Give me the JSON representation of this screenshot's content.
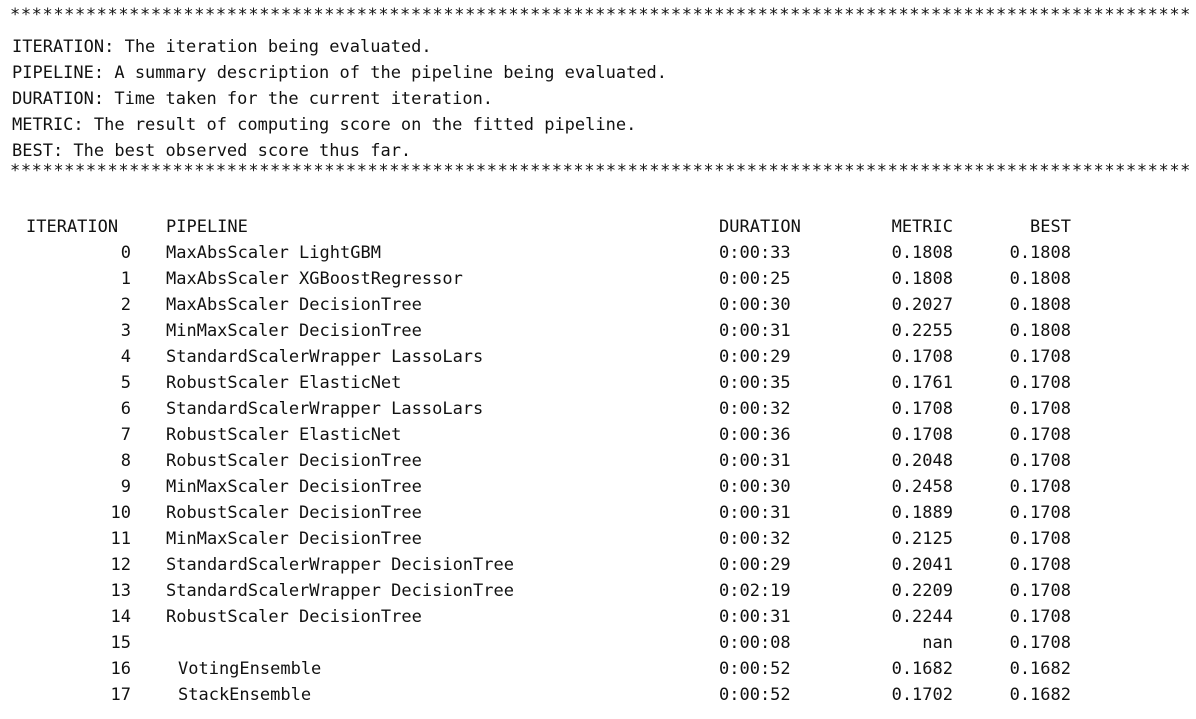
{
  "separator": "**********************************************************************************************************************************",
  "legend": [
    "ITERATION: The iteration being evaluated.",
    "PIPELINE: A summary description of the pipeline being evaluated.",
    "DURATION: Time taken for the current iteration.",
    "METRIC: The result of computing score on the fitted pipeline.",
    "BEST: The best observed score thus far."
  ],
  "table": {
    "headers": {
      "iteration": "ITERATION",
      "pipeline": "PIPELINE",
      "duration": "DURATION",
      "metric": "METRIC",
      "best": "BEST"
    },
    "rows": [
      {
        "iteration": "0",
        "pipeline": "MaxAbsScaler LightGBM",
        "duration": "0:00:33",
        "metric": "0.1808",
        "best": "0.1808"
      },
      {
        "iteration": "1",
        "pipeline": "MaxAbsScaler XGBoostRegressor",
        "duration": "0:00:25",
        "metric": "0.1808",
        "best": "0.1808"
      },
      {
        "iteration": "2",
        "pipeline": "MaxAbsScaler DecisionTree",
        "duration": "0:00:30",
        "metric": "0.2027",
        "best": "0.1808"
      },
      {
        "iteration": "3",
        "pipeline": "MinMaxScaler DecisionTree",
        "duration": "0:00:31",
        "metric": "0.2255",
        "best": "0.1808"
      },
      {
        "iteration": "4",
        "pipeline": "StandardScalerWrapper LassoLars",
        "duration": "0:00:29",
        "metric": "0.1708",
        "best": "0.1708"
      },
      {
        "iteration": "5",
        "pipeline": "RobustScaler ElasticNet",
        "duration": "0:00:35",
        "metric": "0.1761",
        "best": "0.1708"
      },
      {
        "iteration": "6",
        "pipeline": "StandardScalerWrapper LassoLars",
        "duration": "0:00:32",
        "metric": "0.1708",
        "best": "0.1708"
      },
      {
        "iteration": "7",
        "pipeline": "RobustScaler ElasticNet",
        "duration": "0:00:36",
        "metric": "0.1708",
        "best": "0.1708"
      },
      {
        "iteration": "8",
        "pipeline": "RobustScaler DecisionTree",
        "duration": "0:00:31",
        "metric": "0.2048",
        "best": "0.1708"
      },
      {
        "iteration": "9",
        "pipeline": "MinMaxScaler DecisionTree",
        "duration": "0:00:30",
        "metric": "0.2458",
        "best": "0.1708"
      },
      {
        "iteration": "10",
        "pipeline": "RobustScaler DecisionTree",
        "duration": "0:00:31",
        "metric": "0.1889",
        "best": "0.1708"
      },
      {
        "iteration": "11",
        "pipeline": "MinMaxScaler DecisionTree",
        "duration": "0:00:32",
        "metric": "0.2125",
        "best": "0.1708"
      },
      {
        "iteration": "12",
        "pipeline": "StandardScalerWrapper DecisionTree",
        "duration": "0:00:29",
        "metric": "0.2041",
        "best": "0.1708"
      },
      {
        "iteration": "13",
        "pipeline": "StandardScalerWrapper DecisionTree",
        "duration": "0:02:19",
        "metric": "0.2209",
        "best": "0.1708"
      },
      {
        "iteration": "14",
        "pipeline": "RobustScaler DecisionTree",
        "duration": "0:00:31",
        "metric": "0.2244",
        "best": "0.1708"
      },
      {
        "iteration": "15",
        "pipeline": "",
        "duration": "0:00:08",
        "metric": "nan",
        "best": "0.1708"
      },
      {
        "iteration": "16",
        "pipeline": "VotingEnsemble",
        "duration": "0:00:52",
        "metric": "0.1682",
        "best": "0.1682"
      },
      {
        "iteration": "17",
        "pipeline": "StackEnsemble",
        "duration": "0:00:52",
        "metric": "0.1702",
        "best": "0.1682"
      }
    ]
  }
}
